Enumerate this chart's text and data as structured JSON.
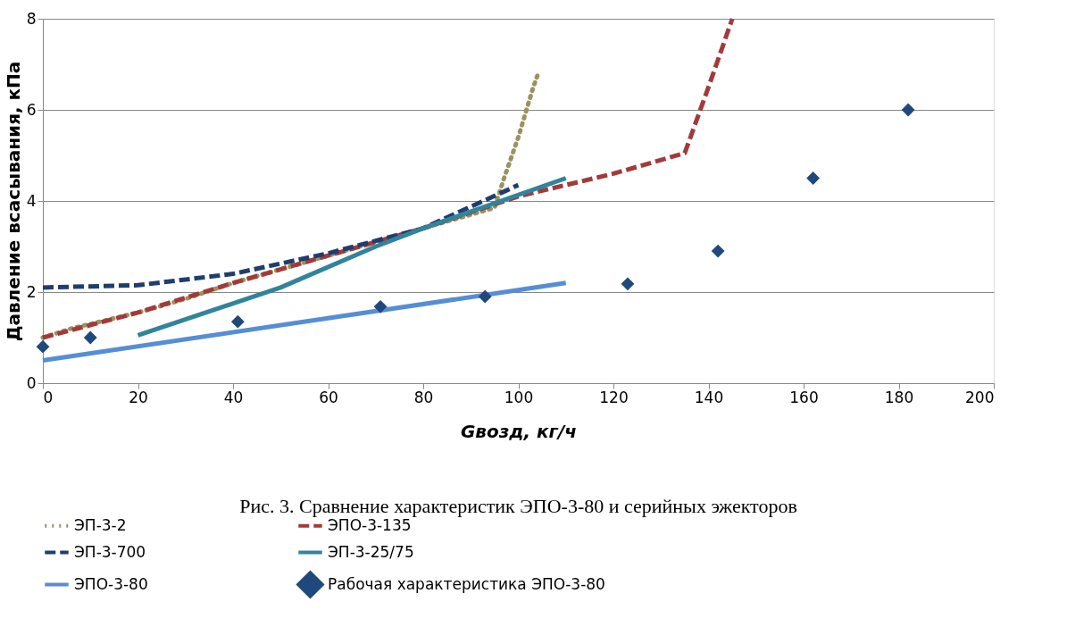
{
  "chart_data": {
    "type": "line",
    "xlabel": "Gвозд, кг/ч",
    "ylabel": "Давление всасывания, кПа",
    "annotations": [
      "Рис. 3. Сравнение характеристик ЭПО-3-80 и серийных эжекторов"
    ],
    "xlim": [
      0,
      200
    ],
    "xticks": [
      0,
      20,
      40,
      60,
      80,
      100,
      120,
      140,
      160,
      180,
      200
    ],
    "ylim": [
      0,
      8
    ],
    "yticks": [
      0,
      2,
      4,
      6,
      8
    ],
    "grid": "y",
    "legend": "bottom",
    "series": [
      {
        "name": "ЭП-3-2",
        "color": "#9b9260",
        "line_style": "dotted",
        "x": [
          0,
          6,
          10,
          20,
          30,
          40,
          50,
          60,
          70,
          80,
          90,
          95,
          97,
          98,
          99,
          100,
          101,
          102,
          103,
          104
        ],
        "values": [
          1.0,
          1.2,
          1.3,
          1.55,
          1.85,
          2.2,
          2.5,
          2.8,
          3.1,
          3.4,
          3.7,
          3.85,
          4.5,
          4.8,
          5.1,
          5.4,
          5.75,
          6.1,
          6.45,
          6.75
        ]
      },
      {
        "name": "ЭПО-3-135",
        "color": "#a33a3a",
        "line_style": "dashed",
        "x": [
          0,
          20,
          40,
          60,
          80,
          100,
          120,
          135,
          140,
          145
        ],
        "values": [
          1.0,
          1.55,
          2.2,
          2.8,
          3.4,
          4.1,
          4.6,
          5.05,
          6.5,
          8.0
        ]
      },
      {
        "name": "ЭП-3-700",
        "color": "#1f3d6e",
        "line_style": "dashed",
        "x": [
          0,
          20,
          40,
          60,
          80,
          100
        ],
        "values": [
          2.1,
          2.15,
          2.4,
          2.85,
          3.4,
          4.35
        ]
      },
      {
        "name": "ЭП-3-25/75",
        "color": "#31849b",
        "line_style": "solid",
        "x": [
          20,
          50,
          70,
          80,
          110
        ],
        "values": [
          1.05,
          2.1,
          3.0,
          3.4,
          4.5
        ]
      },
      {
        "name": "ЭПО-3-80",
        "color": "#558ed5",
        "line_style": "solid",
        "x": [
          0,
          110
        ],
        "values": [
          0.5,
          2.2
        ]
      },
      {
        "name": "Рабочая характеристика ЭПО-3-80",
        "color": "#1f497d",
        "type": "scatter",
        "marker": "diamond",
        "x": [
          0,
          10,
          41,
          71,
          93,
          123,
          142,
          162,
          182
        ],
        "values": [
          0.8,
          1.0,
          1.35,
          1.68,
          1.9,
          2.18,
          2.9,
          4.5,
          6.0
        ]
      }
    ]
  }
}
